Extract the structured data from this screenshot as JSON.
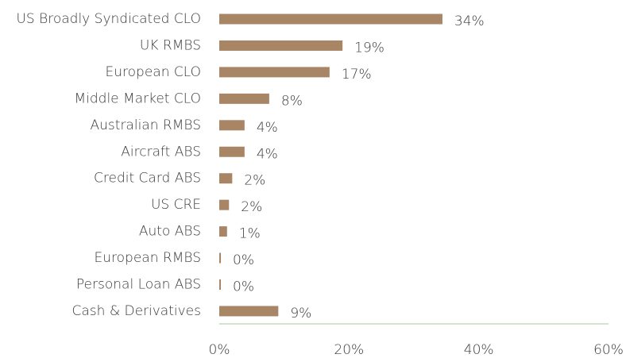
{
  "chart_data": {
    "type": "barh",
    "categories": [
      "US Broadly Syndicated CLO",
      "UK RMBS",
      "European CLO",
      "Middle Market CLO",
      "Australian RMBS",
      "Aircraft ABS",
      "Credit Card ABS",
      "US CRE",
      "Auto ABS",
      "European RMBS",
      "Personal Loan ABS",
      "Cash & Derivatives"
    ],
    "values": [
      34.4,
      19.0,
      17.0,
      7.7,
      3.9,
      3.9,
      2.0,
      1.5,
      1.2,
      0.25,
      0.25,
      9.1
    ],
    "value_labels": [
      "34%",
      "19%",
      "17%",
      "8%",
      "4%",
      "4%",
      "2%",
      "2%",
      "1%",
      "0%",
      "0%",
      "9%"
    ],
    "color": "#a88565",
    "xlim": [
      0,
      60
    ],
    "xticks": [
      {
        "value": 0,
        "label": "0%"
      },
      {
        "value": 20,
        "label": "20%"
      },
      {
        "value": 40,
        "label": "40%"
      },
      {
        "value": 60,
        "label": "60%"
      }
    ],
    "grid": false
  }
}
